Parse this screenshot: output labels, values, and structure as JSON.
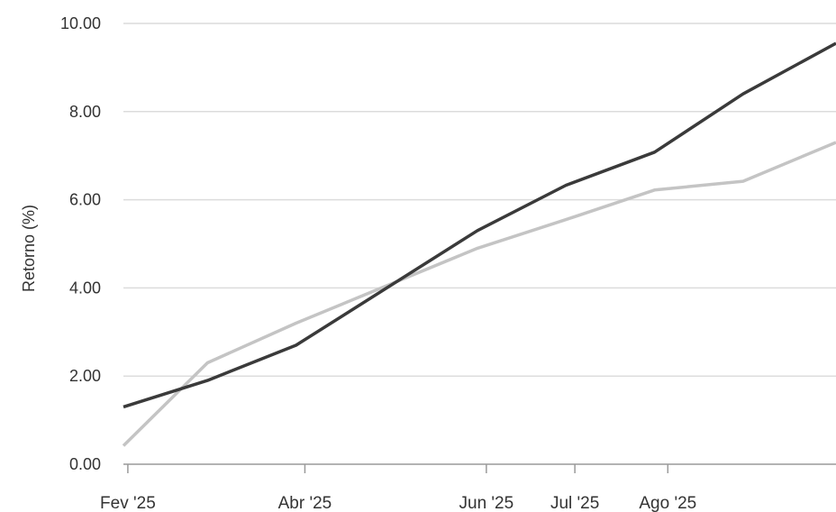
{
  "chart_data": {
    "type": "line",
    "ylabel": "Retorno (%)",
    "xlabel": "",
    "ylim": [
      0,
      10
    ],
    "yticks": [
      "0.00",
      "2.00",
      "4.00",
      "6.00",
      "8.00",
      "10.00"
    ],
    "grid": true,
    "xticks": [
      {
        "label": "Fev '25",
        "x": 0
      },
      {
        "label": "Abr '25",
        "x": 2
      },
      {
        "label": "Jun '25",
        "x": 4.05
      },
      {
        "label": "Jul '25",
        "x": 5.05
      },
      {
        "label": "Ago '25",
        "x": 6.1
      }
    ],
    "xlim": [
      -0.05,
      8
    ],
    "series": [
      {
        "color": "#3a3a3a",
        "points": [
          {
            "x": -0.05,
            "y": 1.3
          },
          {
            "x": 0.9,
            "y": 1.9
          },
          {
            "x": 1.9,
            "y": 2.7
          },
          {
            "x": 3.95,
            "y": 5.3
          },
          {
            "x": 4.95,
            "y": 6.33
          },
          {
            "x": 5.95,
            "y": 7.08
          },
          {
            "x": 6.95,
            "y": 8.4
          },
          {
            "x": 8.0,
            "y": 9.55
          }
        ]
      },
      {
        "color": "#c4c4c4",
        "points": [
          {
            "x": -0.05,
            "y": 0.42
          },
          {
            "x": 0.9,
            "y": 2.3
          },
          {
            "x": 1.9,
            "y": 3.2
          },
          {
            "x": 3.95,
            "y": 4.9
          },
          {
            "x": 4.95,
            "y": 5.55
          },
          {
            "x": 5.95,
            "y": 6.22
          },
          {
            "x": 6.95,
            "y": 6.42
          },
          {
            "x": 8.0,
            "y": 7.3
          }
        ]
      }
    ]
  }
}
